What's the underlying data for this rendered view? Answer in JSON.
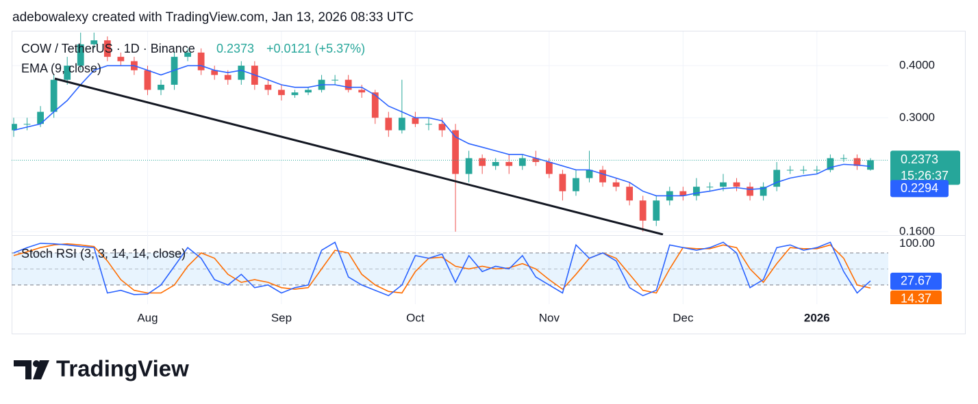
{
  "header": {
    "attribution": "adebowalexy created with TradingView.com, Jan 13, 2026 08:33 UTC"
  },
  "chart_data": [
    {
      "type": "candlestick",
      "title": "COW / TetherUS · 1D · Binance",
      "change_label": "+0.0121 (+5.37%)",
      "countdown": "15:26:37",
      "up_color": "#26a69a",
      "down_color": "#ef5350",
      "log_scale": true,
      "grid": true,
      "categories": [
        null,
        null,
        null,
        null,
        null,
        null,
        null,
        null,
        null,
        null,
        "Aug",
        null,
        null,
        null,
        null,
        null,
        null,
        null,
        null,
        null,
        "Sep",
        null,
        null,
        null,
        null,
        null,
        null,
        null,
        null,
        null,
        "Oct",
        null,
        null,
        null,
        null,
        null,
        null,
        null,
        null,
        null,
        "Nov",
        null,
        null,
        null,
        null,
        null,
        null,
        null,
        null,
        null,
        "Dec",
        null,
        null,
        null,
        null,
        null,
        null,
        null,
        null,
        null,
        "2026",
        null,
        null,
        null,
        null
      ],
      "open": [
        0.28,
        0.29,
        0.29,
        0.31,
        0.37,
        0.4,
        0.45,
        0.46,
        0.42,
        0.41,
        0.39,
        0.35,
        0.36,
        0.42,
        0.43,
        0.39,
        0.38,
        0.37,
        0.4,
        0.36,
        0.35,
        0.34,
        0.345,
        0.35,
        0.37,
        0.37,
        0.35,
        0.345,
        0.3,
        0.28,
        0.3,
        0.29,
        0.29,
        0.28,
        0.22,
        0.24,
        0.23,
        0.235,
        0.23,
        0.24,
        0.235,
        0.22,
        0.2,
        0.215,
        0.225,
        0.21,
        0.205,
        0.19,
        0.17,
        0.19,
        0.2,
        0.195,
        0.205,
        0.205,
        0.21,
        0.205,
        0.195,
        0.205,
        0.225,
        0.225,
        0.225,
        0.225,
        0.24,
        0.24,
        0.2252
      ],
      "high": [
        0.3,
        0.3,
        0.32,
        0.38,
        0.42,
        0.48,
        0.48,
        0.47,
        0.43,
        0.42,
        0.4,
        0.37,
        0.43,
        0.44,
        0.44,
        0.4,
        0.39,
        0.41,
        0.41,
        0.37,
        0.36,
        0.35,
        0.355,
        0.38,
        0.38,
        0.38,
        0.36,
        0.35,
        0.31,
        0.37,
        0.31,
        0.3,
        0.3,
        0.29,
        0.25,
        0.245,
        0.24,
        0.245,
        0.245,
        0.25,
        0.24,
        0.225,
        0.225,
        0.25,
        0.23,
        0.215,
        0.21,
        0.195,
        0.195,
        0.205,
        0.205,
        0.215,
        0.21,
        0.22,
        0.215,
        0.21,
        0.21,
        0.235,
        0.23,
        0.23,
        0.23,
        0.245,
        0.245,
        0.245,
        0.24
      ],
      "low": [
        0.27,
        0.28,
        0.285,
        0.3,
        0.36,
        0.39,
        0.44,
        0.41,
        0.4,
        0.38,
        0.34,
        0.34,
        0.35,
        0.41,
        0.38,
        0.37,
        0.36,
        0.36,
        0.35,
        0.34,
        0.33,
        0.335,
        0.34,
        0.345,
        0.36,
        0.345,
        0.335,
        0.29,
        0.27,
        0.275,
        0.285,
        0.28,
        0.27,
        0.16,
        0.21,
        0.22,
        0.225,
        0.22,
        0.225,
        0.23,
        0.215,
        0.19,
        0.195,
        0.21,
        0.205,
        0.2,
        0.185,
        0.16,
        0.165,
        0.185,
        0.19,
        0.19,
        0.2,
        0.2,
        0.2,
        0.19,
        0.19,
        0.2,
        0.22,
        0.22,
        0.22,
        0.222,
        0.235,
        0.225,
        0.224
      ],
      "close": [
        0.29,
        0.29,
        0.31,
        0.37,
        0.4,
        0.45,
        0.46,
        0.42,
        0.41,
        0.39,
        0.35,
        0.36,
        0.42,
        0.43,
        0.39,
        0.38,
        0.37,
        0.4,
        0.36,
        0.35,
        0.34,
        0.345,
        0.35,
        0.37,
        0.37,
        0.35,
        0.345,
        0.3,
        0.28,
        0.3,
        0.29,
        0.29,
        0.28,
        0.22,
        0.24,
        0.23,
        0.235,
        0.23,
        0.24,
        0.235,
        0.22,
        0.2,
        0.215,
        0.225,
        0.21,
        0.205,
        0.19,
        0.17,
        0.19,
        0.2,
        0.195,
        0.205,
        0.205,
        0.21,
        0.205,
        0.195,
        0.205,
        0.225,
        0.225,
        0.225,
        0.225,
        0.24,
        0.24,
        0.23,
        0.2373
      ],
      "series": [
        {
          "name": "EMA (9, close)",
          "color": "#2962ff",
          "values": [
            0.28,
            0.285,
            0.29,
            0.31,
            0.33,
            0.36,
            0.39,
            0.4,
            0.4,
            0.4,
            0.39,
            0.38,
            0.39,
            0.4,
            0.4,
            0.39,
            0.385,
            0.39,
            0.38,
            0.37,
            0.36,
            0.355,
            0.355,
            0.36,
            0.36,
            0.355,
            0.355,
            0.34,
            0.32,
            0.31,
            0.3,
            0.3,
            0.295,
            0.27,
            0.26,
            0.255,
            0.25,
            0.245,
            0.245,
            0.24,
            0.235,
            0.23,
            0.225,
            0.225,
            0.22,
            0.215,
            0.21,
            0.2,
            0.195,
            0.195,
            0.195,
            0.198,
            0.2,
            0.203,
            0.204,
            0.202,
            0.203,
            0.21,
            0.215,
            0.218,
            0.22,
            0.228,
            0.232,
            0.231,
            0.2294
          ]
        }
      ],
      "ylim": [
        0.1575,
        0.485
      ],
      "yticks": [
        {
          "value": 0.4,
          "label": "0.4000"
        },
        {
          "value": 0.3,
          "label": "0.3000"
        },
        {
          "value": 0.16,
          "label": "0.1600"
        }
      ]
    },
    {
      "type": "line",
      "title": "Stoch RSI (3, 3, 14, 14, close)",
      "band": [
        20,
        80
      ],
      "midline": 50,
      "series": [
        {
          "color": "#2962ff",
          "values": [
            80,
            90,
            98,
            97,
            95,
            92,
            90,
            5,
            10,
            2,
            3,
            20,
            55,
            90,
            70,
            30,
            20,
            40,
            15,
            20,
            5,
            15,
            20,
            85,
            100,
            35,
            20,
            10,
            0,
            20,
            75,
            70,
            78,
            25,
            75,
            45,
            55,
            50,
            75,
            35,
            20,
            5,
            95,
            70,
            80,
            65,
            15,
            0,
            10,
            95,
            90,
            85,
            90,
            100,
            80,
            15,
            30,
            90,
            95,
            85,
            90,
            100,
            45,
            5,
            27.67
          ]
        },
        {
          "color": "#ff6d00",
          "values": [
            75,
            82,
            90,
            95,
            97,
            95,
            92,
            65,
            30,
            10,
            5,
            5,
            20,
            55,
            80,
            70,
            40,
            25,
            30,
            25,
            15,
            12,
            15,
            50,
            85,
            80,
            40,
            20,
            8,
            5,
            45,
            70,
            72,
            55,
            50,
            55,
            50,
            52,
            60,
            50,
            30,
            12,
            40,
            70,
            80,
            70,
            40,
            10,
            5,
            50,
            90,
            88,
            88,
            95,
            90,
            50,
            25,
            60,
            90,
            88,
            88,
            95,
            70,
            20,
            14.37
          ]
        }
      ],
      "ylim": [
        -16,
        112
      ],
      "yticks": [
        {
          "value": 100,
          "label": "100.00"
        }
      ]
    }
  ],
  "footer": {
    "brand": "TradingView"
  }
}
